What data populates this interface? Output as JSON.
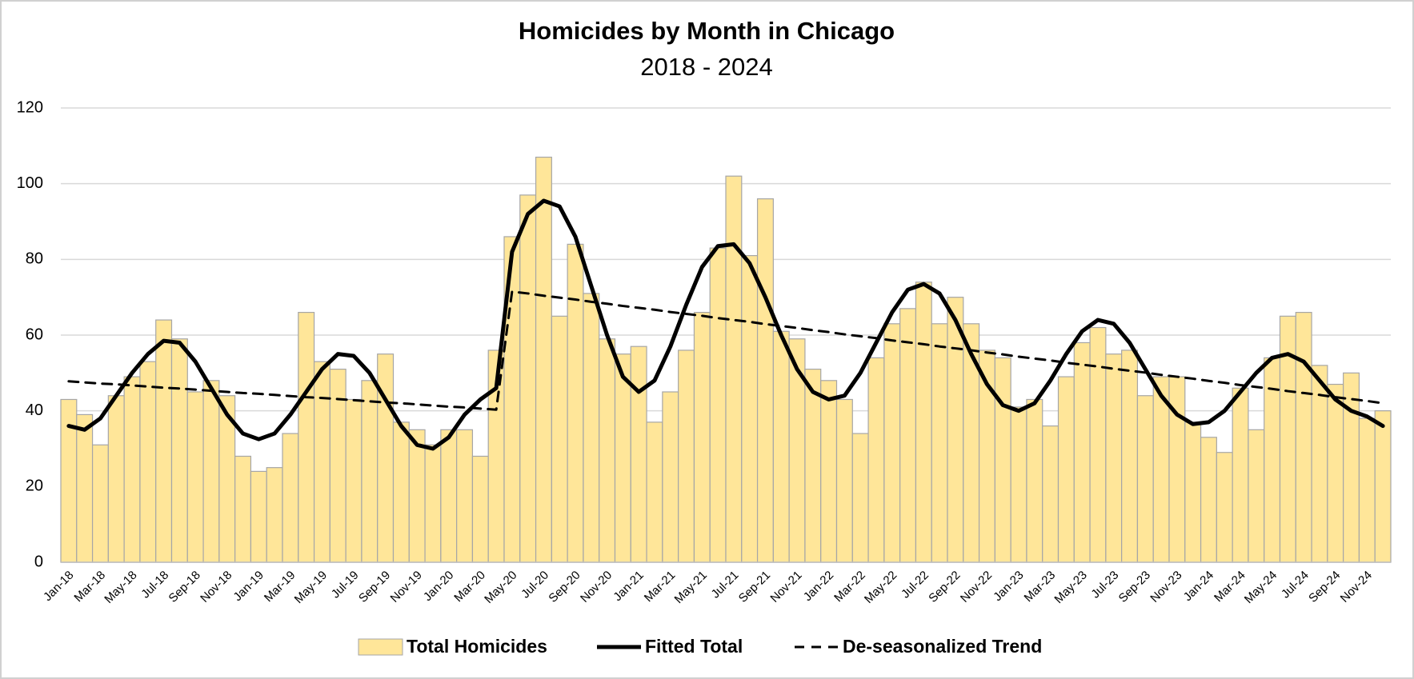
{
  "chart_data": {
    "type": "bar",
    "title": "Homicides by Month in Chicago",
    "subtitle": "2018 - 2024",
    "categories": [
      "Jan-18",
      null,
      "Mar-18",
      null,
      "May-18",
      null,
      "Jul-18",
      null,
      "Sep-18",
      null,
      "Nov-18",
      null,
      "Jan-19",
      null,
      "Mar-19",
      null,
      "May-19",
      null,
      "Jul-19",
      null,
      "Sep-19",
      null,
      "Nov-19",
      null,
      "Jan-20",
      null,
      "Mar-20",
      null,
      "May-20",
      null,
      "Jul-20",
      null,
      "Sep-20",
      null,
      "Nov-20",
      null,
      "Jan-21",
      null,
      "Mar-21",
      null,
      "May-21",
      null,
      "Jul-21",
      null,
      "Sep-21",
      null,
      "Nov-21",
      null,
      "Jan-22",
      null,
      "Mar-22",
      null,
      "May-22",
      null,
      "Jul-22",
      null,
      "Sep-22",
      null,
      "Nov-22",
      null,
      "Jan-23",
      null,
      "Mar-23",
      null,
      "May-23",
      null,
      "Jul-23",
      null,
      "Sep-23",
      null,
      "Nov-23",
      null,
      "Jan-24",
      null,
      "Mar-24",
      null,
      "May-24",
      null,
      "Jul-24",
      null,
      "Sep-24",
      null,
      "Nov-24",
      null
    ],
    "series": [
      {
        "name": "Total Homicides",
        "type": "bar",
        "color": "#ffe699",
        "values": [
          43,
          39,
          31,
          44,
          49,
          53,
          64,
          59,
          45,
          48,
          44,
          28,
          24,
          25,
          34,
          66,
          53,
          51,
          43,
          48,
          55,
          37,
          35,
          31,
          35,
          35,
          28,
          56,
          86,
          97,
          107,
          65,
          84,
          71,
          59,
          55,
          57,
          37,
          45,
          56,
          66,
          83,
          102,
          81,
          96,
          61,
          59,
          51,
          48,
          43,
          34,
          54,
          63,
          67,
          74,
          63,
          70,
          63,
          56,
          54,
          41,
          43,
          36,
          49,
          58,
          62,
          55,
          56,
          44,
          49,
          49,
          37,
          33,
          29,
          46,
          35,
          54,
          65,
          66,
          52,
          47,
          50,
          38,
          40
        ]
      },
      {
        "name": "Fitted Total",
        "type": "line",
        "color": "#000000",
        "values": [
          36,
          35,
          38,
          44,
          50,
          55,
          58.5,
          58,
          53,
          46,
          39,
          34,
          32.5,
          34,
          39,
          45,
          51,
          55,
          54.5,
          50,
          43,
          36,
          31,
          30,
          33,
          39,
          43,
          46,
          82,
          92,
          95.5,
          94,
          86,
          73,
          60,
          49,
          45,
          48,
          57,
          68,
          78,
          83.5,
          84,
          79,
          70,
          60,
          51,
          45,
          43,
          44,
          50,
          58,
          66,
          72,
          73.5,
          71,
          64,
          55,
          47,
          41.5,
          40,
          42,
          48,
          55,
          61,
          64,
          63,
          58,
          51,
          44,
          39,
          36.5,
          37,
          40,
          45,
          50,
          54,
          55,
          53,
          48,
          43,
          40,
          38.5,
          36
        ]
      },
      {
        "name": "De-seasonalized Trend",
        "type": "dashed-line",
        "color": "#000000",
        "values": [
          47.8,
          47.5,
          47.2,
          47.0,
          46.7,
          46.4,
          46.1,
          45.9,
          45.6,
          45.3,
          45.0,
          44.7,
          44.5,
          44.2,
          43.9,
          43.6,
          43.4,
          43.1,
          42.8,
          42.5,
          42.2,
          42.0,
          41.7,
          41.4,
          41.1,
          40.9,
          40.6,
          40.3,
          71.5,
          71.0,
          70.4,
          69.9,
          69.4,
          68.8,
          68.3,
          67.7,
          67.2,
          66.7,
          66.1,
          65.6,
          65.1,
          64.5,
          64.0,
          63.5,
          62.9,
          62.4,
          61.9,
          61.3,
          60.8,
          60.2,
          59.7,
          59.2,
          58.6,
          58.1,
          57.6,
          57.0,
          56.5,
          56.0,
          55.4,
          54.9,
          54.3,
          53.8,
          53.3,
          52.7,
          52.2,
          51.7,
          51.1,
          50.6,
          50.1,
          49.5,
          49.0,
          48.5,
          47.9,
          47.4,
          46.8,
          46.3,
          45.8,
          45.2,
          44.7,
          44.2,
          43.6,
          43.1,
          42.6,
          42.0
        ]
      }
    ],
    "ylim": [
      0,
      120
    ],
    "yticks": [
      0,
      20,
      40,
      60,
      80,
      100,
      120
    ],
    "grid": true,
    "legend": "bottom"
  }
}
